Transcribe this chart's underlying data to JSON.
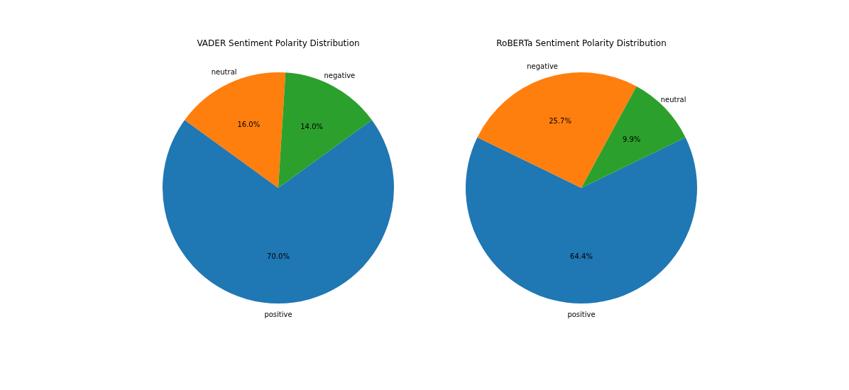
{
  "chart_data": [
    {
      "type": "pie",
      "title": "VADER Sentiment Polarity Distribution",
      "categories": [
        "positive",
        "neutral",
        "negative"
      ],
      "values": [
        70.0,
        16.0,
        14.0
      ],
      "colors": [
        "#1f77b4",
        "#ff7f0e",
        "#2ca02c"
      ],
      "value_labels": [
        "70.0%",
        "16.0%",
        "14.0%"
      ],
      "legend": false
    },
    {
      "type": "pie",
      "title": "RoBERTa Sentiment Polarity Distribution",
      "categories": [
        "positive",
        "negative",
        "neutral"
      ],
      "values": [
        64.4,
        25.7,
        9.9
      ],
      "colors": [
        "#1f77b4",
        "#ff7f0e",
        "#2ca02c"
      ],
      "value_labels": [
        "64.4%",
        "25.7%",
        "9.9%"
      ],
      "legend": false
    }
  ]
}
